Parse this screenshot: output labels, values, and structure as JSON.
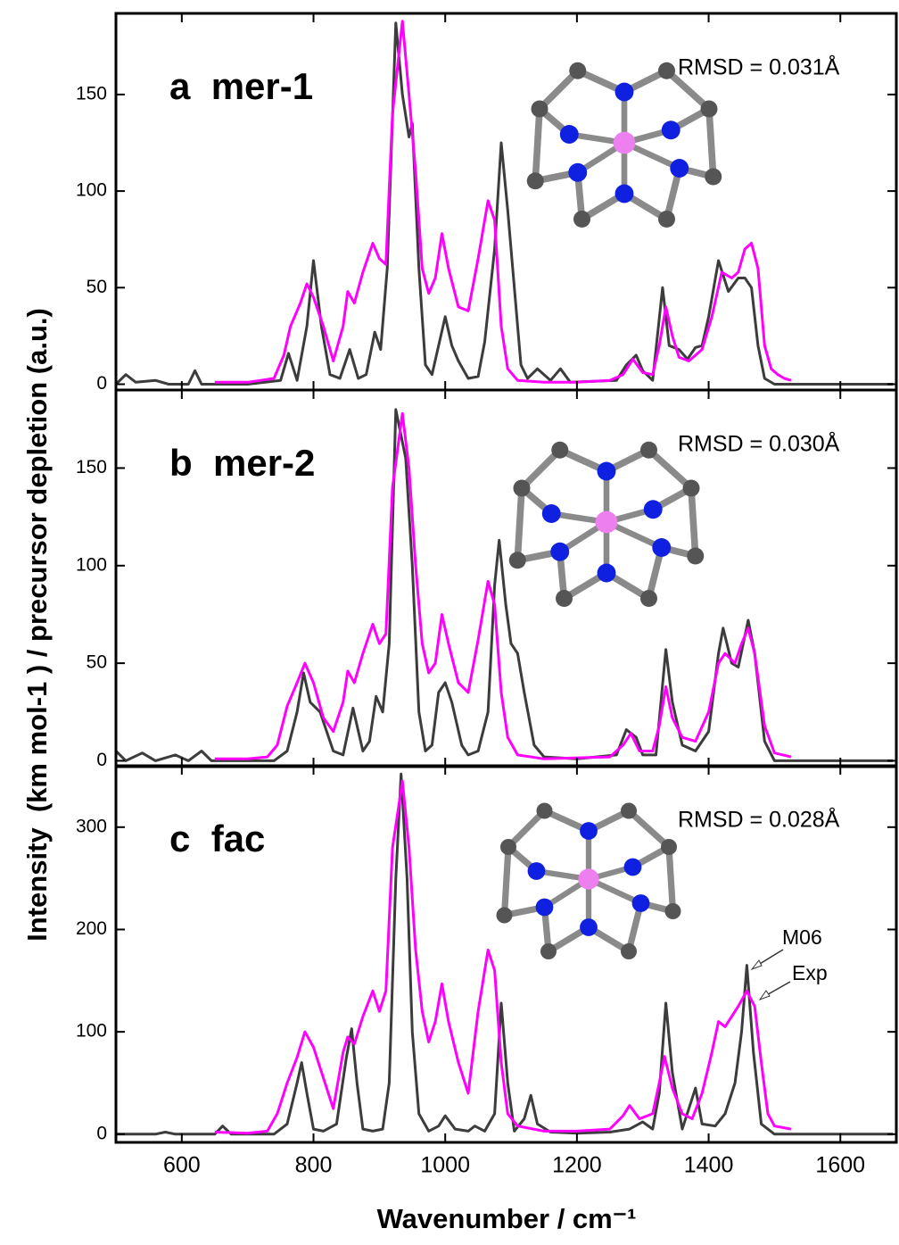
{
  "chart_data": [
    {
      "type": "line",
      "title": "a  mer-1",
      "annotation": "RMSD = 0.031Å",
      "ylim": [
        -3,
        192
      ],
      "yticks": [
        0,
        50,
        100,
        150
      ],
      "series": [
        {
          "color": "#3c3c3c",
          "x": [
            500,
            515,
            530,
            560,
            580,
            610,
            620,
            630,
            700,
            750,
            762,
            775,
            790,
            800,
            812,
            825,
            840,
            855,
            868,
            880,
            893,
            902,
            912,
            925,
            935,
            945,
            950,
            960,
            970,
            980,
            990,
            1000,
            1010,
            1020,
            1035,
            1050,
            1060,
            1075,
            1085,
            1095,
            1105,
            1115,
            1125,
            1140,
            1160,
            1175,
            1190,
            1260,
            1275,
            1290,
            1300,
            1315,
            1330,
            1340,
            1355,
            1368,
            1380,
            1390,
            1400,
            1415,
            1430,
            1445,
            1455,
            1465,
            1475,
            1485,
            1500,
            1680
          ],
          "values": [
            0,
            5,
            1,
            2,
            0,
            0,
            7,
            0,
            0,
            2,
            16,
            2,
            30,
            64,
            30,
            5,
            3,
            18,
            3,
            5,
            27,
            18,
            60,
            187,
            150,
            128,
            135,
            60,
            10,
            5,
            20,
            35,
            20,
            12,
            3,
            4,
            22,
            70,
            125,
            90,
            50,
            10,
            3,
            8,
            2,
            8,
            1,
            2,
            10,
            15,
            7,
            2,
            50,
            20,
            18,
            13,
            19,
            20,
            35,
            64,
            48,
            55,
            55,
            50,
            20,
            3,
            0,
            0
          ]
        },
        {
          "color": "#ff00ff",
          "x": [
            650,
            700,
            720,
            740,
            755,
            765,
            780,
            790,
            800,
            815,
            830,
            845,
            852,
            862,
            875,
            890,
            900,
            910,
            920,
            935,
            945,
            955,
            965,
            975,
            985,
            995,
            1005,
            1020,
            1035,
            1050,
            1065,
            1075,
            1085,
            1095,
            1110,
            1150,
            1200,
            1250,
            1270,
            1285,
            1300,
            1315,
            1325,
            1335,
            1345,
            1355,
            1370,
            1390,
            1405,
            1420,
            1435,
            1445,
            1455,
            1465,
            1475,
            1485,
            1495,
            1505,
            1515,
            1525
          ],
          "values": [
            1,
            1,
            2,
            3,
            15,
            30,
            42,
            52,
            45,
            30,
            12,
            30,
            48,
            42,
            58,
            73,
            65,
            62,
            140,
            188,
            150,
            110,
            60,
            47,
            55,
            78,
            60,
            40,
            38,
            65,
            95,
            85,
            30,
            8,
            2,
            1,
            1,
            2,
            5,
            13,
            6,
            5,
            20,
            40,
            25,
            14,
            12,
            18,
            35,
            58,
            55,
            58,
            70,
            73,
            60,
            20,
            8,
            5,
            3,
            2
          ]
        }
      ]
    },
    {
      "type": "line",
      "title": "b  mer-2",
      "annotation": "RMSD = 0.030Å",
      "ylabel": "Intensity  (km mol-1 ) / precursor depletion (a.u.)",
      "ylim": [
        -3,
        190
      ],
      "yticks": [
        0,
        50,
        100,
        150
      ],
      "series": [
        {
          "color": "#3c3c3c",
          "x": [
            500,
            515,
            540,
            560,
            590,
            610,
            630,
            645,
            700,
            740,
            760,
            775,
            785,
            795,
            810,
            830,
            845,
            860,
            875,
            885,
            895,
            905,
            915,
            925,
            940,
            950,
            960,
            970,
            980,
            990,
            1000,
            1010,
            1025,
            1035,
            1050,
            1065,
            1075,
            1082,
            1092,
            1100,
            1110,
            1120,
            1135,
            1150,
            1200,
            1260,
            1275,
            1290,
            1300,
            1320,
            1335,
            1345,
            1360,
            1380,
            1400,
            1415,
            1422,
            1435,
            1445,
            1460,
            1470,
            1485,
            1500,
            1680
          ],
          "values": [
            5,
            0,
            4,
            0,
            3,
            0,
            5,
            0,
            0,
            0,
            5,
            25,
            45,
            30,
            25,
            5,
            3,
            27,
            5,
            10,
            33,
            25,
            60,
            180,
            155,
            100,
            25,
            5,
            8,
            35,
            40,
            30,
            8,
            3,
            5,
            25,
            90,
            113,
            80,
            60,
            55,
            35,
            8,
            2,
            1,
            3,
            16,
            12,
            3,
            3,
            57,
            30,
            8,
            5,
            15,
            55,
            68,
            50,
            48,
            72,
            55,
            10,
            0,
            0
          ]
        },
        {
          "color": "#ff00ff",
          "x": [
            650,
            700,
            730,
            745,
            760,
            775,
            787,
            800,
            815,
            830,
            845,
            852,
            862,
            875,
            890,
            900,
            910,
            920,
            935,
            945,
            955,
            965,
            975,
            985,
            995,
            1005,
            1020,
            1035,
            1050,
            1065,
            1075,
            1085,
            1095,
            1110,
            1150,
            1250,
            1270,
            1282,
            1295,
            1315,
            1325,
            1335,
            1345,
            1360,
            1380,
            1400,
            1415,
            1425,
            1440,
            1450,
            1460,
            1470,
            1485,
            1500,
            1525
          ],
          "values": [
            1,
            1,
            2,
            8,
            28,
            40,
            50,
            40,
            22,
            15,
            30,
            46,
            40,
            55,
            70,
            60,
            65,
            140,
            178,
            150,
            100,
            60,
            45,
            50,
            75,
            60,
            40,
            35,
            62,
            92,
            80,
            35,
            12,
            3,
            1,
            2,
            8,
            14,
            5,
            5,
            18,
            38,
            22,
            12,
            10,
            25,
            50,
            55,
            50,
            60,
            68,
            55,
            18,
            4,
            2
          ]
        }
      ]
    },
    {
      "type": "line",
      "title": "c  fac",
      "annotation": "RMSD = 0.028Å",
      "xlabel": "Wavenumber / cm⁻¹",
      "xlim": [
        500,
        1685
      ],
      "xticks": [
        600,
        800,
        1000,
        1200,
        1400,
        1600
      ],
      "ylim": [
        -8,
        360
      ],
      "yticks": [
        0,
        100,
        200,
        300
      ],
      "series": [
        {
          "name": "M06",
          "color": "#3c3c3c",
          "x": [
            500,
            560,
            575,
            590,
            650,
            662,
            675,
            740,
            760,
            775,
            782,
            790,
            800,
            815,
            835,
            850,
            858,
            866,
            875,
            890,
            905,
            915,
            925,
            933,
            942,
            950,
            960,
            975,
            990,
            1000,
            1015,
            1035,
            1045,
            1060,
            1075,
            1085,
            1095,
            1105,
            1120,
            1130,
            1140,
            1160,
            1200,
            1250,
            1280,
            1300,
            1315,
            1325,
            1335,
            1345,
            1360,
            1370,
            1380,
            1390,
            1410,
            1425,
            1440,
            1450,
            1458,
            1468,
            1480,
            1500,
            1680
          ],
          "values": [
            0,
            0,
            2,
            0,
            0,
            8,
            0,
            0,
            10,
            50,
            70,
            40,
            5,
            3,
            10,
            75,
            103,
            50,
            5,
            3,
            5,
            50,
            250,
            352,
            250,
            100,
            20,
            3,
            8,
            18,
            5,
            3,
            8,
            3,
            20,
            128,
            50,
            3,
            15,
            38,
            10,
            2,
            1,
            2,
            5,
            12,
            5,
            40,
            128,
            60,
            5,
            25,
            45,
            10,
            8,
            20,
            50,
            100,
            165,
            80,
            10,
            0,
            0
          ]
        },
        {
          "name": "Exp",
          "color": "#ff00ff",
          "x": [
            650,
            700,
            730,
            745,
            760,
            775,
            787,
            800,
            815,
            830,
            845,
            852,
            862,
            875,
            890,
            900,
            910,
            920,
            935,
            945,
            955,
            965,
            975,
            985,
            995,
            1005,
            1020,
            1035,
            1050,
            1065,
            1075,
            1085,
            1095,
            1110,
            1150,
            1200,
            1250,
            1270,
            1280,
            1295,
            1315,
            1325,
            1333,
            1345,
            1360,
            1375,
            1390,
            1405,
            1415,
            1425,
            1435,
            1445,
            1458,
            1470,
            1480,
            1490,
            1500,
            1525
          ],
          "values": [
            2,
            1,
            3,
            20,
            50,
            75,
            100,
            85,
            55,
            25,
            80,
            95,
            88,
            115,
            140,
            120,
            140,
            280,
            345,
            280,
            180,
            120,
            90,
            110,
            147,
            110,
            70,
            40,
            120,
            180,
            160,
            70,
            20,
            8,
            3,
            3,
            5,
            18,
            28,
            15,
            20,
            50,
            76,
            45,
            20,
            15,
            40,
            80,
            110,
            105,
            115,
            125,
            140,
            125,
            70,
            20,
            8,
            5
          ]
        }
      ]
    }
  ]
}
